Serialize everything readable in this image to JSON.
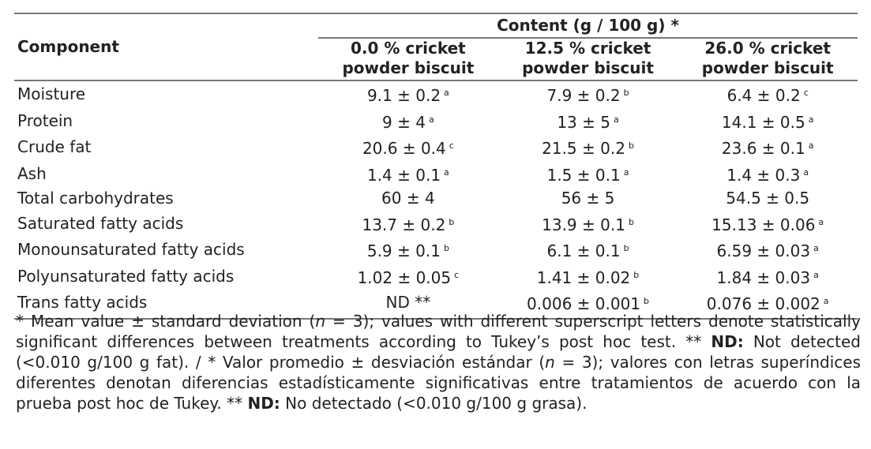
{
  "table": {
    "group_header": "Content (g / 100 g) *",
    "component_header": "Component",
    "columns": [
      {
        "line1": "0.0 % cricket",
        "line2": "powder biscuit"
      },
      {
        "line1": "12.5 % cricket",
        "line2": "powder biscuit"
      },
      {
        "line1": "26.0 % cricket",
        "line2": "powder biscuit"
      }
    ],
    "rows": [
      {
        "name": "Moisture",
        "cells": [
          {
            "v": "9.1 ± 0.2",
            "s": "a"
          },
          {
            "v": "7.9 ± 0.2",
            "s": "b"
          },
          {
            "v": "6.4 ± 0.2",
            "s": "c"
          }
        ]
      },
      {
        "name": "Protein",
        "cells": [
          {
            "v": "9 ± 4",
            "s": "a"
          },
          {
            "v": "13 ± 5",
            "s": "a"
          },
          {
            "v": "14.1 ± 0.5",
            "s": "a"
          }
        ]
      },
      {
        "name": "Crude fat",
        "cells": [
          {
            "v": "20.6 ± 0.4",
            "s": "c"
          },
          {
            "v": "21.5 ± 0.2",
            "s": "b"
          },
          {
            "v": "23.6 ± 0.1",
            "s": "a"
          }
        ]
      },
      {
        "name": "Ash",
        "cells": [
          {
            "v": "1.4 ± 0.1",
            "s": "a"
          },
          {
            "v": "1.5 ± 0.1",
            "s": "a"
          },
          {
            "v": "1.4 ± 0.3",
            "s": "a"
          }
        ]
      },
      {
        "name": "Total carbohydrates",
        "cells": [
          {
            "v": "60 ± 4",
            "s": ""
          },
          {
            "v": "56 ± 5",
            "s": ""
          },
          {
            "v": "54.5 ± 0.5",
            "s": ""
          }
        ]
      },
      {
        "name": "Saturated fatty acids",
        "cells": [
          {
            "v": "13.7 ± 0.2",
            "s": "b"
          },
          {
            "v": "13.9 ± 0.1",
            "s": "b"
          },
          {
            "v": "15.13 ± 0.06",
            "s": "a"
          }
        ]
      },
      {
        "name": "Monounsaturated fatty acids",
        "cells": [
          {
            "v": "5.9 ± 0.1",
            "s": "b"
          },
          {
            "v": "6.1 ± 0.1",
            "s": "b"
          },
          {
            "v": "6.59 ± 0.03",
            "s": "a"
          }
        ]
      },
      {
        "name": "Polyunsaturated fatty acids",
        "cells": [
          {
            "v": "1.02 ± 0.05",
            "s": "c"
          },
          {
            "v": "1.41 ± 0.02",
            "s": "b"
          },
          {
            "v": "1.84 ± 0.03",
            "s": "a"
          }
        ]
      },
      {
        "name": "Trans fatty acids",
        "cells": [
          {
            "v": "ND **",
            "s": ""
          },
          {
            "v": "0.006 ± 0.001",
            "s": "b"
          },
          {
            "v": "0.076 ± 0.002",
            "s": "a"
          }
        ]
      }
    ]
  },
  "footnote": {
    "p1": "* Mean value ± standard deviation (",
    "n": "n",
    "p2": " = 3); values with different superscript letters denote statistically significant differences between treatments according to Tukey’s post hoc test. ** ",
    "nd1": "ND:",
    "p3": " Not detected (<0.010 g/100 g fat). / * Valor promedio ± desviación estándar (",
    "n2": "n",
    "p4": " = 3); valores con letras superíndices diferentes denotan diferencias estadísticamente significativas entre tratamientos de acuerdo con la prueba post hoc de Tukey. ** ",
    "nd2": "ND:",
    "p5": " No detectado (<0.010 g/100 g grasa)."
  }
}
